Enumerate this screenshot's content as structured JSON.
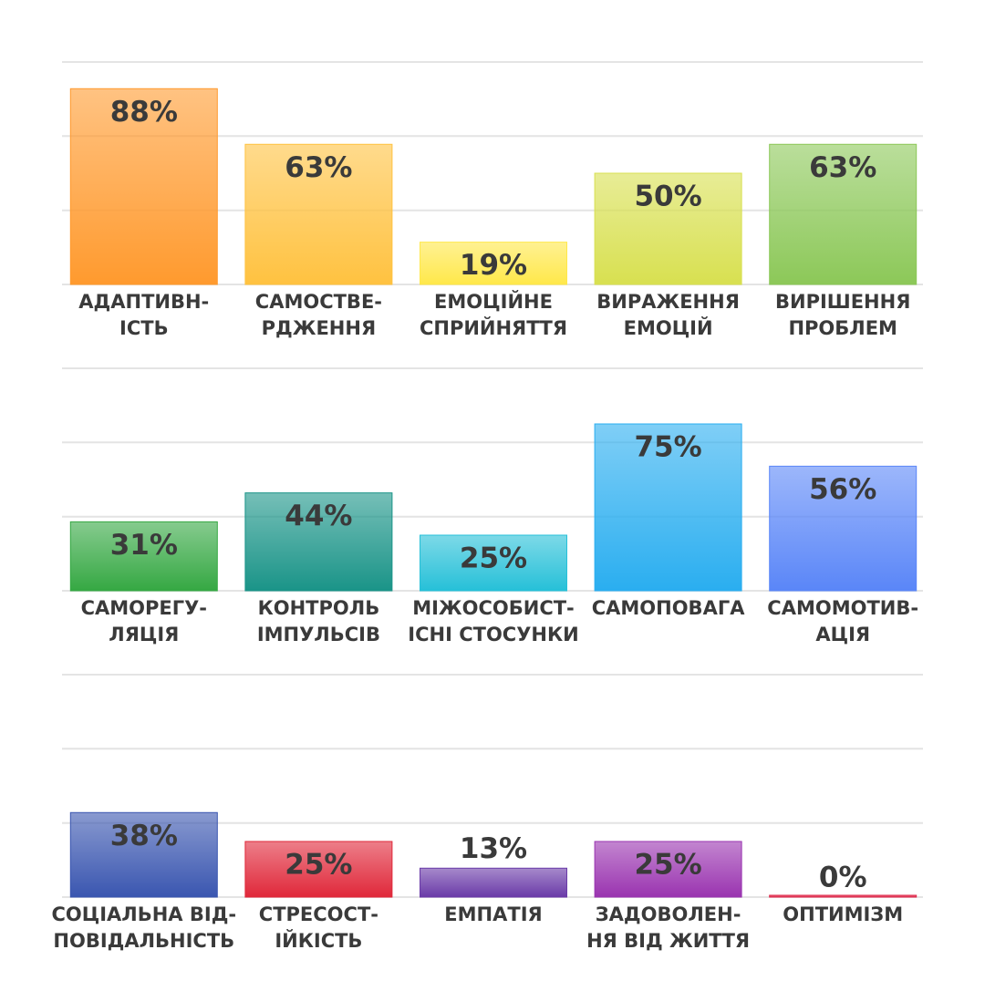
{
  "chart_data": [
    {
      "type": "bar",
      "categories": [
        [
          "АДАПТИВН-",
          "ІСТЬ"
        ],
        [
          "САМОСТВЕ-",
          "РДЖЕННЯ"
        ],
        [
          "ЕМОЦІЙНЕ",
          "СПРИЙНЯТТЯ"
        ],
        [
          "ВИРАЖЕННЯ",
          "ЕМОЦІЙ"
        ],
        [
          "ВИРІШЕННЯ",
          "ПРОБЛЕМ"
        ]
      ],
      "values": [
        88,
        63,
        19,
        50,
        63
      ],
      "value_labels": [
        "88%",
        "63%",
        "19%",
        "50%",
        "63%"
      ],
      "colors": [
        "#ff9a2e",
        "#ffc240",
        "#ffe84a",
        "#d8e050",
        "#8cc858"
      ],
      "ylim": [
        0,
        100
      ],
      "yticks": [
        0,
        33.3,
        66.7,
        100
      ],
      "grid": true
    },
    {
      "type": "bar",
      "categories": [
        [
          "САМОРЕГУ-",
          "ЛЯЦІЯ"
        ],
        [
          "КОНТРОЛЬ",
          "ІМПУЛЬСІВ"
        ],
        [
          "МІЖОСОБИСТ-",
          "ІСНІ СТОСУНКИ"
        ],
        [
          "САМОПОВАГА"
        ],
        [
          "САМОМОТИВ-",
          "АЦІЯ"
        ]
      ],
      "values": [
        31,
        44,
        25,
        75,
        56
      ],
      "value_labels": [
        "31%",
        "44%",
        "25%",
        "75%",
        "56%"
      ],
      "colors": [
        "#35a843",
        "#1a9488",
        "#26c0d8",
        "#2aaef0",
        "#5a86f8"
      ],
      "ylim": [
        0,
        100
      ],
      "yticks": [
        0,
        33.3,
        66.7,
        100
      ],
      "grid": true
    },
    {
      "type": "bar",
      "categories": [
        [
          "СОЦІАЛЬНА ВІД-",
          "ПОВІДАЛЬНІСТЬ"
        ],
        [
          "СТРЕСОСТ-",
          "ІЙКІСТЬ"
        ],
        [
          "ЕМПАТІЯ"
        ],
        [
          "ЗАДОВОЛЕН-",
          "НЯ ВІД ЖИТТЯ"
        ],
        [
          "ОПТИМІЗМ"
        ]
      ],
      "values": [
        38,
        25,
        13,
        25,
        0
      ],
      "value_labels": [
        "38%",
        "25%",
        "13%",
        "25%",
        "0%"
      ],
      "colors": [
        "#3a56b0",
        "#e0283a",
        "#6a3aa8",
        "#9a34b0",
        "#e0284a"
      ],
      "ylim": [
        0,
        100
      ],
      "yticks": [
        0,
        33.3,
        66.7,
        100
      ],
      "grid": true
    }
  ]
}
